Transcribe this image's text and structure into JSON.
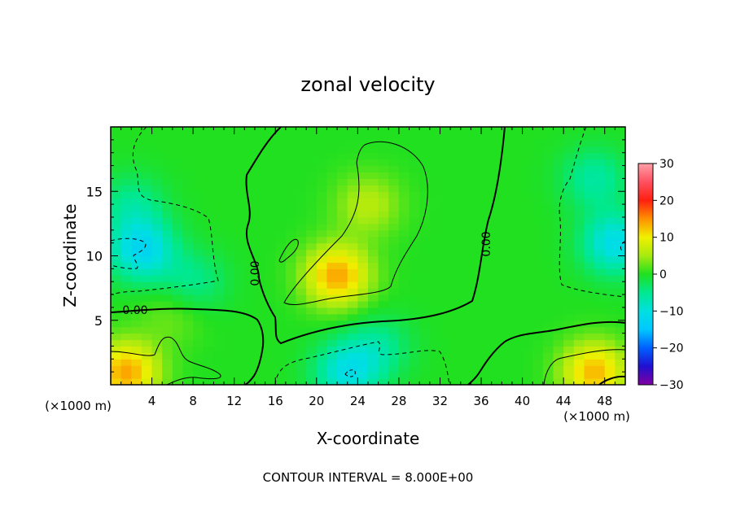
{
  "chart_data": {
    "type": "heatmap",
    "title": "zonal velocity",
    "xlabel": "X-coordinate",
    "ylabel": "Z-coordinate",
    "x_unit_label_left": "(×1000 m)",
    "x_unit_label_right": "(×1000 m)",
    "footer": "CONTOUR INTERVAL = 8.000E+00",
    "xlim": [
      0,
      50
    ],
    "ylim": [
      0,
      20
    ],
    "x_ticks": [
      4,
      8,
      12,
      16,
      20,
      24,
      28,
      32,
      36,
      40,
      44,
      48
    ],
    "x_tick_labels": [
      "4",
      "8",
      "12",
      "16",
      "20",
      "24",
      "28",
      "32",
      "36",
      "40",
      "44",
      "48"
    ],
    "y_ticks": [
      5,
      10,
      15
    ],
    "y_tick_labels": [
      "5",
      "10",
      "15"
    ],
    "contour_labels": [
      "0.00",
      "0.00",
      "0.00"
    ],
    "colorbar": {
      "min": -30,
      "max": 30,
      "ticks": [
        30,
        20,
        10,
        0,
        -10,
        -20,
        -30
      ],
      "tick_labels": [
        "30",
        "20",
        "10",
        "0",
        "−10",
        "−20",
        "−30"
      ],
      "colors": [
        "#8000a0",
        "#2010d0",
        "#0060ff",
        "#00c8ff",
        "#00e0e0",
        "#00e890",
        "#20e020",
        "#a8ea10",
        "#f0f000",
        "#ff9000",
        "#ff2010",
        "#ff5060",
        "#ffa0a8"
      ]
    },
    "background_value": 0,
    "features": [
      {
        "label": "upper-left cyan region",
        "x": 2,
        "z": 14,
        "value": -5
      },
      {
        "label": "left jet minimum",
        "x": 3,
        "z": 10.5,
        "value": -12
      },
      {
        "label": "right jet minimum",
        "x": 49,
        "z": 11,
        "value": -11
      },
      {
        "label": "right upper cyan region",
        "x": 47,
        "z": 16,
        "value": -6
      },
      {
        "label": "central positive maximum",
        "x": 22,
        "z": 8.5,
        "value": 14
      },
      {
        "label": "upper central yellow-green",
        "x": 25,
        "z": 14,
        "value": 6
      },
      {
        "label": "lower-left positive maximum",
        "x": 1.5,
        "z": 1,
        "value": 14
      },
      {
        "label": "lower-right positive maximum",
        "x": 47,
        "z": 1,
        "value": 13
      },
      {
        "label": "bottom centre negative minimum",
        "x": 23,
        "z": 1,
        "value": -10
      },
      {
        "label": "lower mid cyan band",
        "x": 26,
        "z": 3,
        "value": -5
      },
      {
        "label": "left lower light band",
        "x": 6,
        "z": 5.5,
        "value": 3
      },
      {
        "label": "left mid cyan band",
        "x": 8,
        "z": 8,
        "value": -5
      }
    ]
  }
}
